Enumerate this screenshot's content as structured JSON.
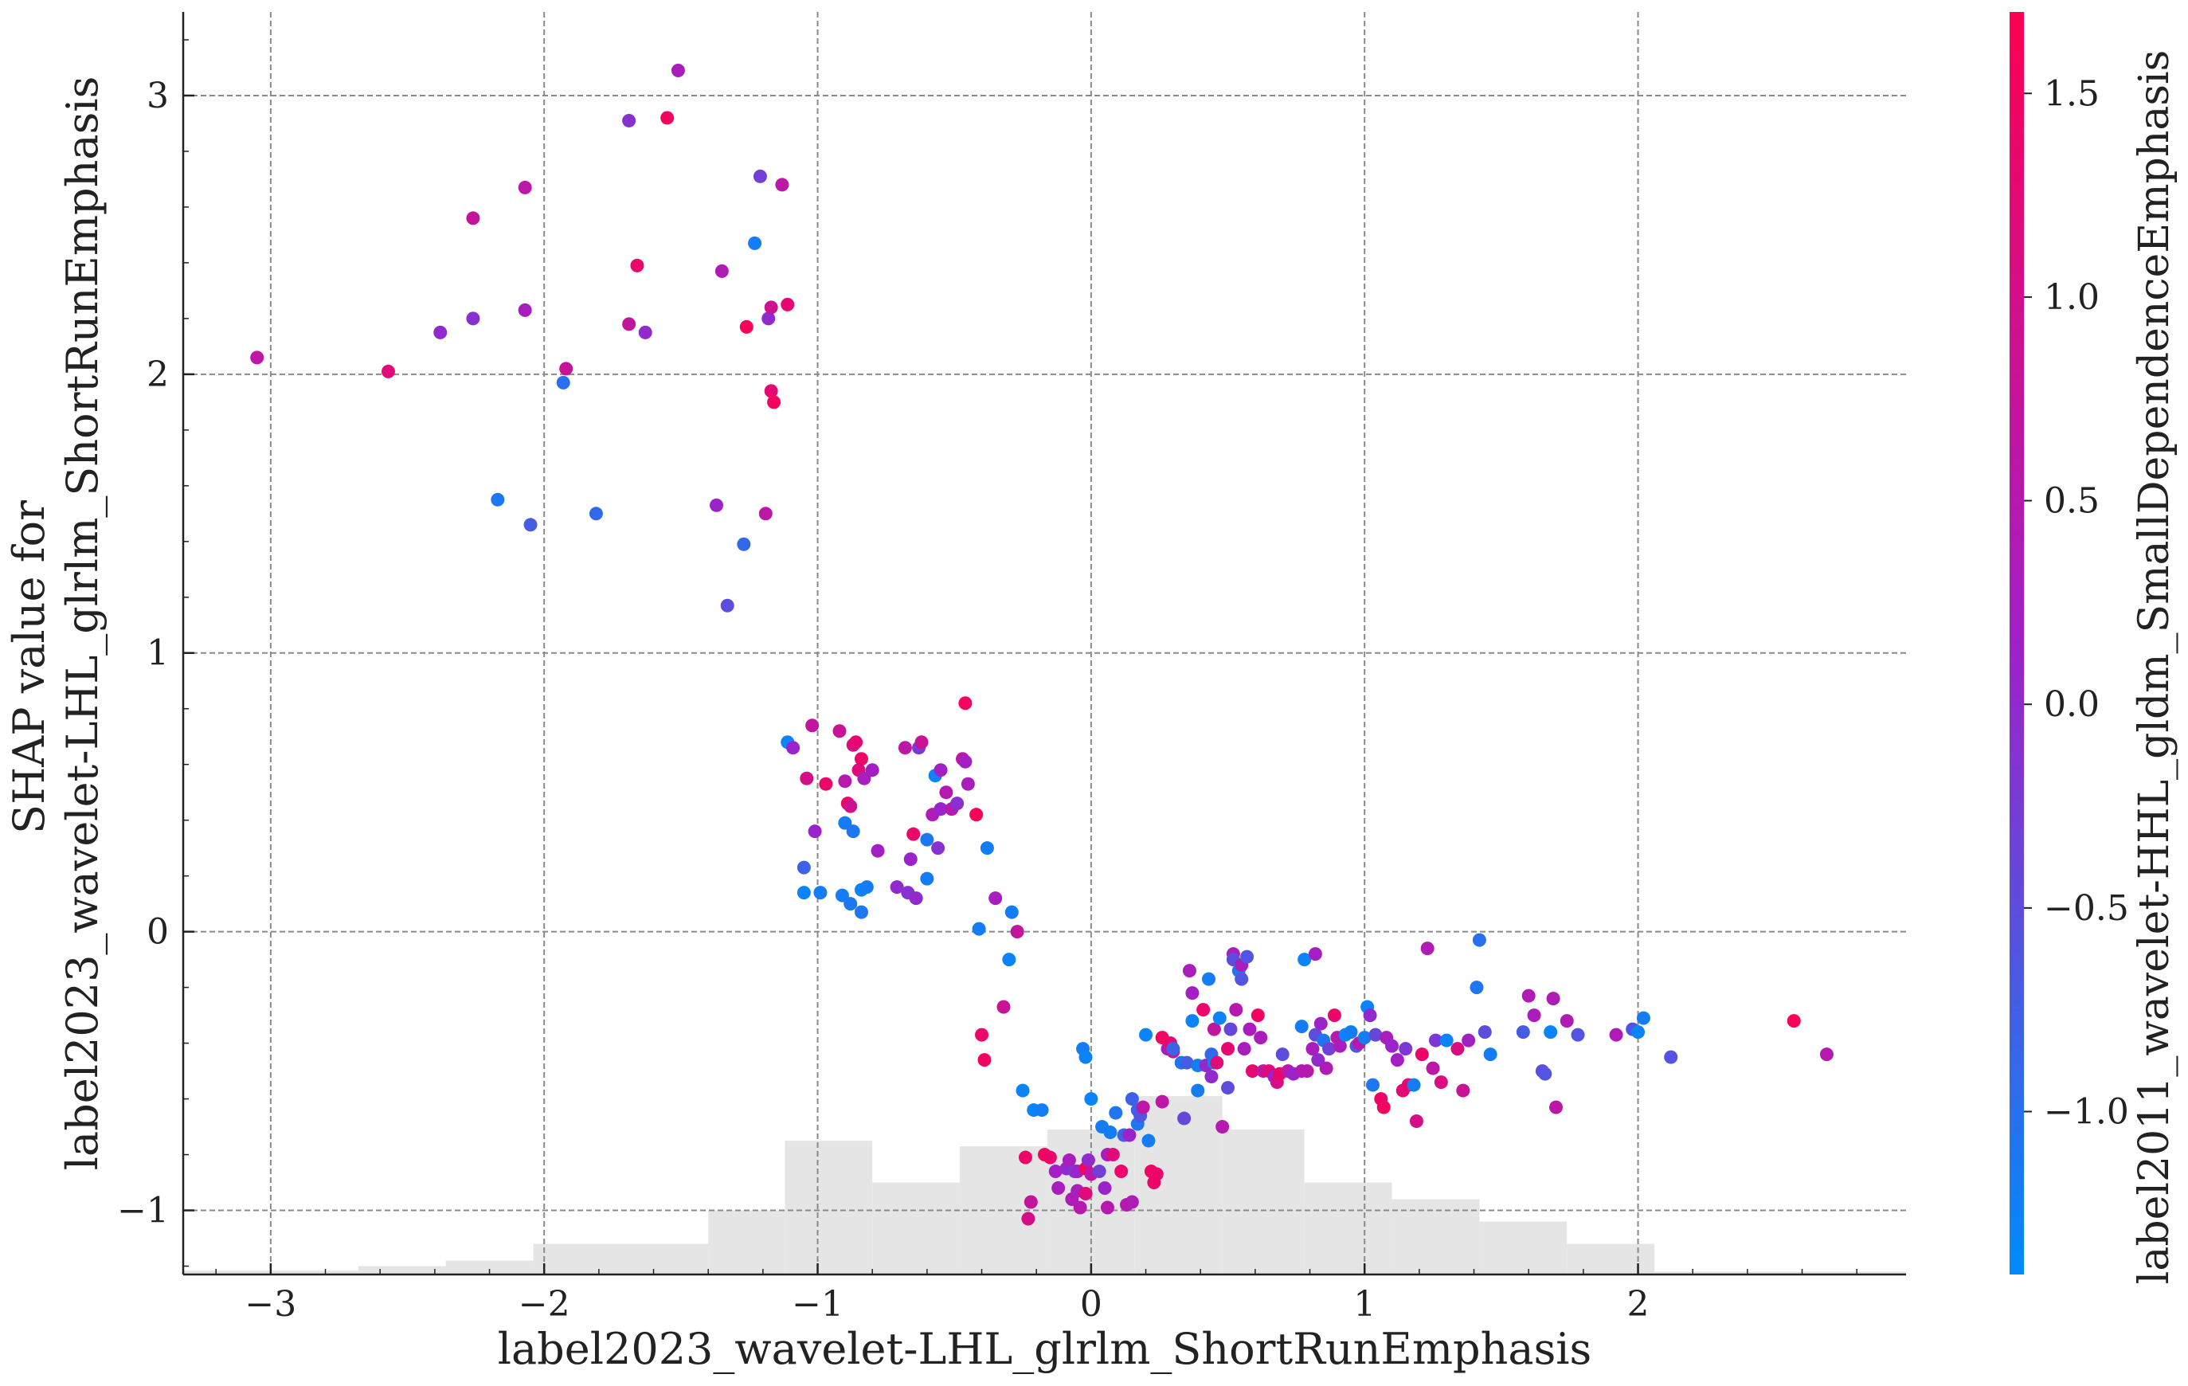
{
  "chart_data": {
    "type": "scatter",
    "xlabel": "label2023_wavelet-LHL_glrlm_ShortRunEmphasis",
    "ylabel_lines": [
      "SHAP value for",
      "label2023_wavelet-LHL_glrlm_ShortRunEmphasis"
    ],
    "colorbar_label": "label2011_wavelet-HHL_gldm_SmallDependenceEmphasis",
    "xlim": [
      -3.32,
      2.98
    ],
    "ylim": [
      -1.23,
      3.3
    ],
    "xticks": [
      -3,
      -2,
      -1,
      0,
      1,
      2
    ],
    "yticks": [
      -1,
      0,
      1,
      2,
      3
    ],
    "xtick_labels": [
      "−3",
      "−2",
      "−1",
      "0",
      "1",
      "2"
    ],
    "ytick_labels": [
      "−1",
      "0",
      "1",
      "2",
      "3"
    ],
    "grid": true,
    "colormap": {
      "name": "shap-red-blue",
      "low_color": "#008bfb",
      "mid_color": "#a020c8",
      "high_color": "#ff0052",
      "vmin": -1.4,
      "vmax": 1.7,
      "ticks": [
        -1.0,
        -0.5,
        0.0,
        0.5,
        1.0,
        1.5
      ],
      "tick_labels": [
        "−1.0",
        "−0.5",
        "0.0",
        "0.5",
        "1.0",
        "1.5"
      ]
    },
    "histogram": {
      "color": "#e5e5e5",
      "y_base": -1.23,
      "bins": [
        {
          "x0": -3.32,
          "x1": -2.68,
          "top": -1.216
        },
        {
          "x0": -2.68,
          "x1": -2.36,
          "top": -1.2
        },
        {
          "x0": -2.36,
          "x1": -2.04,
          "top": -1.18
        },
        {
          "x0": -2.04,
          "x1": -1.4,
          "top": -1.12
        },
        {
          "x0": -1.4,
          "x1": -1.12,
          "top": -1.0
        },
        {
          "x0": -1.12,
          "x1": -0.8,
          "top": -0.75
        },
        {
          "x0": -0.8,
          "x1": -0.48,
          "top": -0.9
        },
        {
          "x0": -0.48,
          "x1": -0.16,
          "top": -0.77
        },
        {
          "x0": -0.16,
          "x1": 0.16,
          "top": -0.71
        },
        {
          "x0": 0.16,
          "x1": 0.48,
          "top": -0.59
        },
        {
          "x0": 0.48,
          "x1": 0.78,
          "top": -0.71
        },
        {
          "x0": 0.78,
          "x1": 1.1,
          "top": -0.9
        },
        {
          "x0": 1.1,
          "x1": 1.42,
          "top": -0.96
        },
        {
          "x0": 1.42,
          "x1": 1.74,
          "top": -1.04
        },
        {
          "x0": 1.74,
          "x1": 2.06,
          "top": -1.12
        },
        {
          "x0": 2.06,
          "x1": 2.98,
          "top": -1.22
        }
      ]
    },
    "points": [
      [
        -3.05,
        2.06,
        0.6
      ],
      [
        -2.57,
        2.01,
        1.2
      ],
      [
        -2.38,
        2.15,
        0.0
      ],
      [
        -2.26,
        2.56,
        0.7
      ],
      [
        -2.26,
        2.2,
        -0.1
      ],
      [
        -2.17,
        1.55,
        -1.1
      ],
      [
        -2.07,
        2.67,
        0.6
      ],
      [
        -2.07,
        2.23,
        0.3
      ],
      [
        -2.05,
        1.46,
        -0.7
      ],
      [
        -1.93,
        1.97,
        -1.0
      ],
      [
        -1.92,
        2.02,
        0.8
      ],
      [
        -1.81,
        1.5,
        -0.9
      ],
      [
        -1.69,
        2.91,
        -0.1
      ],
      [
        -1.69,
        2.18,
        0.7
      ],
      [
        -1.66,
        2.39,
        1.4
      ],
      [
        -1.63,
        2.15,
        0.0
      ],
      [
        -1.55,
        2.92,
        1.5
      ],
      [
        -1.51,
        3.09,
        0.3
      ],
      [
        -1.37,
        1.53,
        0.1
      ],
      [
        -1.35,
        2.37,
        0.4
      ],
      [
        -1.33,
        1.17,
        -0.5
      ],
      [
        -1.27,
        1.39,
        -0.9
      ],
      [
        -1.26,
        2.17,
        1.6
      ],
      [
        -1.23,
        2.47,
        -1.2
      ],
      [
        -1.21,
        2.71,
        -0.3
      ],
      [
        -1.19,
        1.5,
        0.6
      ],
      [
        -1.18,
        2.2,
        0.0
      ],
      [
        -1.17,
        2.24,
        0.9
      ],
      [
        -1.17,
        1.94,
        1.3
      ],
      [
        -1.16,
        1.9,
        1.5
      ],
      [
        -1.13,
        2.68,
        0.6
      ],
      [
        -1.11,
        2.25,
        1.3
      ],
      [
        -1.11,
        0.68,
        -1.3
      ],
      [
        -1.09,
        0.66,
        0.1
      ],
      [
        -1.05,
        0.23,
        -0.8
      ],
      [
        -1.05,
        0.14,
        -1.3
      ],
      [
        -1.04,
        0.55,
        1.0
      ],
      [
        -1.02,
        0.74,
        0.7
      ],
      [
        -1.01,
        0.36,
        0.1
      ],
      [
        -0.99,
        0.14,
        -1.2
      ],
      [
        -0.97,
        0.53,
        1.4
      ],
      [
        -0.92,
        0.72,
        0.8
      ],
      [
        -0.91,
        0.13,
        -1.2
      ],
      [
        -0.9,
        0.39,
        -1.2
      ],
      [
        -0.9,
        0.54,
        0.5
      ],
      [
        -0.89,
        0.46,
        1.5
      ],
      [
        -0.88,
        0.1,
        -1.1
      ],
      [
        -0.88,
        0.45,
        0.9
      ],
      [
        -0.87,
        0.36,
        -1.1
      ],
      [
        -0.87,
        0.67,
        1.0
      ],
      [
        -0.86,
        0.68,
        1.3
      ],
      [
        -0.85,
        0.58,
        1.2
      ],
      [
        -0.84,
        0.62,
        1.4
      ],
      [
        -0.84,
        0.15,
        -1.3
      ],
      [
        -0.84,
        0.07,
        -1.1
      ],
      [
        -0.83,
        0.55,
        0.3
      ],
      [
        -0.82,
        0.16,
        -1.2
      ],
      [
        -0.8,
        0.58,
        0.2
      ],
      [
        -0.78,
        0.29,
        0.2
      ],
      [
        -0.71,
        0.16,
        0.0
      ],
      [
        -0.68,
        0.66,
        0.6
      ],
      [
        -0.67,
        0.14,
        -0.1
      ],
      [
        -0.66,
        0.26,
        0.1
      ],
      [
        -0.65,
        0.35,
        1.4
      ],
      [
        -0.64,
        0.12,
        0.0
      ],
      [
        -0.63,
        0.66,
        -0.2
      ],
      [
        -0.62,
        0.68,
        0.8
      ],
      [
        -0.6,
        0.19,
        -1.2
      ],
      [
        -0.6,
        0.33,
        -1.1
      ],
      [
        -0.58,
        0.42,
        0.4
      ],
      [
        -0.57,
        0.56,
        -1.3
      ],
      [
        -0.56,
        0.3,
        -0.1
      ],
      [
        -0.55,
        0.58,
        0.2
      ],
      [
        -0.55,
        0.44,
        0.1
      ],
      [
        -0.53,
        0.5,
        0.5
      ],
      [
        -0.51,
        0.44,
        0.5
      ],
      [
        -0.49,
        0.46,
        -0.1
      ],
      [
        -0.47,
        0.62,
        0.6
      ],
      [
        -0.46,
        0.82,
        1.5
      ],
      [
        -0.46,
        0.61,
        0.2
      ],
      [
        -0.45,
        0.53,
        0.3
      ],
      [
        -0.42,
        0.42,
        1.6
      ],
      [
        -0.41,
        0.01,
        -1.2
      ],
      [
        -0.4,
        -0.37,
        1.4
      ],
      [
        -0.39,
        -0.46,
        1.5
      ],
      [
        -0.38,
        0.3,
        -1.2
      ],
      [
        -0.35,
        0.12,
        0.3
      ],
      [
        -0.32,
        -0.27,
        0.8
      ],
      [
        -0.3,
        -0.1,
        -1.3
      ],
      [
        -0.29,
        0.07,
        -1.2
      ],
      [
        -0.27,
        -0.0,
        0.7
      ],
      [
        -0.25,
        -0.57,
        -1.3
      ],
      [
        -0.24,
        -0.81,
        1.4
      ],
      [
        -0.23,
        -1.03,
        1.0
      ],
      [
        -0.22,
        -0.97,
        0.7
      ],
      [
        -0.21,
        -0.64,
        -1.3
      ],
      [
        -0.18,
        -0.64,
        -1.2
      ],
      [
        -0.17,
        -0.8,
        1.5
      ],
      [
        -0.15,
        -0.81,
        1.4
      ],
      [
        -0.13,
        -0.86,
        0.2
      ],
      [
        -0.12,
        -0.92,
        0.3
      ],
      [
        -0.09,
        -0.85,
        0.0
      ],
      [
        -0.08,
        -0.82,
        0.3
      ],
      [
        -0.07,
        -0.96,
        0.4
      ],
      [
        -0.06,
        -0.86,
        -0.2
      ],
      [
        -0.05,
        -0.93,
        0.3
      ],
      [
        -0.05,
        -0.86,
        0.1
      ],
      [
        -0.04,
        -0.99,
        0.5
      ],
      [
        -0.03,
        -0.42,
        -1.2
      ],
      [
        -0.02,
        -0.85,
        1.5
      ],
      [
        -0.02,
        -0.45,
        -1.3
      ],
      [
        -0.02,
        -0.94,
        1.2
      ],
      [
        -0.01,
        -0.82,
        0.0
      ],
      [
        0.0,
        -0.87,
        0.6
      ],
      [
        0.0,
        -0.6,
        -1.3
      ],
      [
        0.03,
        -0.86,
        -0.3
      ],
      [
        0.04,
        -0.7,
        -1.2
      ],
      [
        0.05,
        -0.92,
        0.1
      ],
      [
        0.06,
        -0.8,
        0.3
      ],
      [
        0.06,
        -0.99,
        0.5
      ],
      [
        0.07,
        -0.72,
        -1.2
      ],
      [
        0.08,
        -0.8,
        1.2
      ],
      [
        0.09,
        -0.65,
        -1.1
      ],
      [
        0.11,
        -0.86,
        1.4
      ],
      [
        0.12,
        -0.73,
        -0.8
      ],
      [
        0.13,
        -0.98,
        0.5
      ],
      [
        0.14,
        -0.73,
        0.1
      ],
      [
        0.15,
        -0.6,
        -0.8
      ],
      [
        0.15,
        -0.97,
        0.4
      ],
      [
        0.17,
        -0.69,
        -1.1
      ],
      [
        0.17,
        -0.64,
        -0.8
      ],
      [
        0.18,
        -0.66,
        -0.6
      ],
      [
        0.19,
        -0.63,
        0.6
      ],
      [
        0.2,
        -0.37,
        -1.3
      ],
      [
        0.21,
        -0.75,
        -1.2
      ],
      [
        0.22,
        -0.86,
        1.5
      ],
      [
        0.23,
        -0.9,
        1.4
      ],
      [
        0.24,
        -0.87,
        1.4
      ],
      [
        0.26,
        -0.61,
        0.6
      ],
      [
        0.26,
        -0.38,
        1.5
      ],
      [
        0.28,
        -0.42,
        0.4
      ],
      [
        0.29,
        -0.4,
        1.3
      ],
      [
        0.3,
        -0.43,
        0.7
      ],
      [
        0.3,
        -0.42,
        -0.8
      ],
      [
        0.33,
        -0.47,
        -1.1
      ],
      [
        0.34,
        -0.67,
        -0.4
      ],
      [
        0.35,
        -0.47,
        -0.7
      ],
      [
        0.36,
        -0.14,
        0.3
      ],
      [
        0.37,
        -0.32,
        -1.3
      ],
      [
        0.37,
        -0.22,
        0.2
      ],
      [
        0.39,
        -0.57,
        -1.2
      ],
      [
        0.39,
        -0.48,
        -1.2
      ],
      [
        0.41,
        -0.28,
        1.4
      ],
      [
        0.42,
        -0.48,
        0.0
      ],
      [
        0.43,
        -0.17,
        -1.2
      ],
      [
        0.44,
        -0.52,
        0.0
      ],
      [
        0.44,
        -0.44,
        -0.9
      ],
      [
        0.45,
        -0.47,
        -1.2
      ],
      [
        0.45,
        -0.35,
        0.7
      ],
      [
        0.46,
        -0.47,
        1.2
      ],
      [
        0.47,
        -0.31,
        -1.3
      ],
      [
        0.48,
        -0.7,
        0.5
      ],
      [
        0.5,
        -0.56,
        -0.5
      ],
      [
        0.5,
        -0.42,
        1.3
      ],
      [
        0.51,
        -0.35,
        -0.4
      ],
      [
        0.52,
        -0.08,
        0.3
      ],
      [
        0.52,
        -0.1,
        -0.5
      ],
      [
        0.53,
        -0.28,
        0.5
      ],
      [
        0.54,
        -0.14,
        -1.1
      ],
      [
        0.55,
        -0.12,
        0.3
      ],
      [
        0.55,
        -0.17,
        -0.6
      ],
      [
        0.56,
        -0.42,
        0.3
      ],
      [
        0.57,
        -0.09,
        -0.6
      ],
      [
        0.58,
        -0.35,
        0.3
      ],
      [
        0.59,
        -0.5,
        1.3
      ],
      [
        0.61,
        -0.3,
        1.5
      ],
      [
        0.62,
        -0.38,
        0.3
      ],
      [
        0.63,
        -0.5,
        0.7
      ],
      [
        0.65,
        -0.5,
        1.2
      ],
      [
        0.67,
        -0.52,
        0.1
      ],
      [
        0.68,
        -0.54,
        1.0
      ],
      [
        0.69,
        -0.51,
        1.4
      ],
      [
        0.7,
        -0.44,
        -0.5
      ],
      [
        0.72,
        -0.5,
        0.6
      ],
      [
        0.74,
        -0.51,
        0.1
      ],
      [
        0.77,
        -0.5,
        0.4
      ],
      [
        0.77,
        -0.34,
        -1.2
      ],
      [
        0.78,
        -0.1,
        -1.3
      ],
      [
        0.79,
        -0.5,
        0.5
      ],
      [
        0.81,
        -0.42,
        0.3
      ],
      [
        0.82,
        -0.37,
        -0.5
      ],
      [
        0.82,
        -0.08,
        0.2
      ],
      [
        0.83,
        -0.46,
        0.0
      ],
      [
        0.84,
        -0.33,
        0.1
      ],
      [
        0.85,
        -0.39,
        -1.1
      ],
      [
        0.86,
        -0.49,
        0.4
      ],
      [
        0.87,
        -0.42,
        -0.3
      ],
      [
        0.89,
        -0.3,
        1.4
      ],
      [
        0.9,
        -0.38,
        0.5
      ],
      [
        0.91,
        -0.41,
        0.3
      ],
      [
        0.93,
        -0.37,
        -1.3
      ],
      [
        0.95,
        -0.36,
        -1.2
      ],
      [
        0.97,
        -0.41,
        -0.6
      ],
      [
        0.98,
        -0.4,
        0.5
      ],
      [
        1.0,
        -0.38,
        -1.2
      ],
      [
        1.01,
        -0.27,
        -1.3
      ],
      [
        1.02,
        -0.3,
        0.0
      ],
      [
        1.03,
        -0.55,
        -1.1
      ],
      [
        1.04,
        -0.37,
        -0.4
      ],
      [
        1.06,
        -0.6,
        1.4
      ],
      [
        1.07,
        -0.63,
        1.5
      ],
      [
        1.08,
        -0.38,
        0.3
      ],
      [
        1.1,
        -0.41,
        0.1
      ],
      [
        1.12,
        -0.46,
        0.2
      ],
      [
        1.14,
        -0.57,
        1.3
      ],
      [
        1.15,
        -0.42,
        -0.2
      ],
      [
        1.16,
        -0.55,
        1.3
      ],
      [
        1.18,
        -0.55,
        -1.2
      ],
      [
        1.19,
        -0.68,
        1.0
      ],
      [
        1.21,
        -0.44,
        1.4
      ],
      [
        1.23,
        -0.06,
        0.4
      ],
      [
        1.25,
        -0.49,
        0.6
      ],
      [
        1.26,
        -0.39,
        -0.2
      ],
      [
        1.28,
        -0.54,
        1.1
      ],
      [
        1.3,
        -0.39,
        -1.3
      ],
      [
        1.34,
        -0.42,
        1.1
      ],
      [
        1.36,
        -0.57,
        0.8
      ],
      [
        1.38,
        -0.39,
        0.2
      ],
      [
        1.41,
        -0.2,
        -1.1
      ],
      [
        1.42,
        -0.03,
        -1.0
      ],
      [
        1.44,
        -0.36,
        -0.5
      ],
      [
        1.46,
        -0.44,
        -1.2
      ],
      [
        1.58,
        -0.36,
        -0.7
      ],
      [
        1.6,
        -0.23,
        0.4
      ],
      [
        1.62,
        -0.3,
        0.3
      ],
      [
        1.65,
        -0.5,
        -0.5
      ],
      [
        1.66,
        -0.51,
        -0.6
      ],
      [
        1.68,
        -0.36,
        -1.3
      ],
      [
        1.69,
        -0.24,
        0.4
      ],
      [
        1.7,
        -0.63,
        0.6
      ],
      [
        1.74,
        -0.32,
        0.4
      ],
      [
        1.78,
        -0.37,
        -0.6
      ],
      [
        1.92,
        -0.37,
        0.4
      ],
      [
        1.98,
        -0.35,
        -0.6
      ],
      [
        2.0,
        -0.36,
        -1.3
      ],
      [
        2.02,
        -0.31,
        -1.2
      ],
      [
        2.12,
        -0.45,
        -0.6
      ],
      [
        2.57,
        -0.32,
        1.6
      ],
      [
        2.69,
        -0.44,
        0.5
      ]
    ]
  }
}
